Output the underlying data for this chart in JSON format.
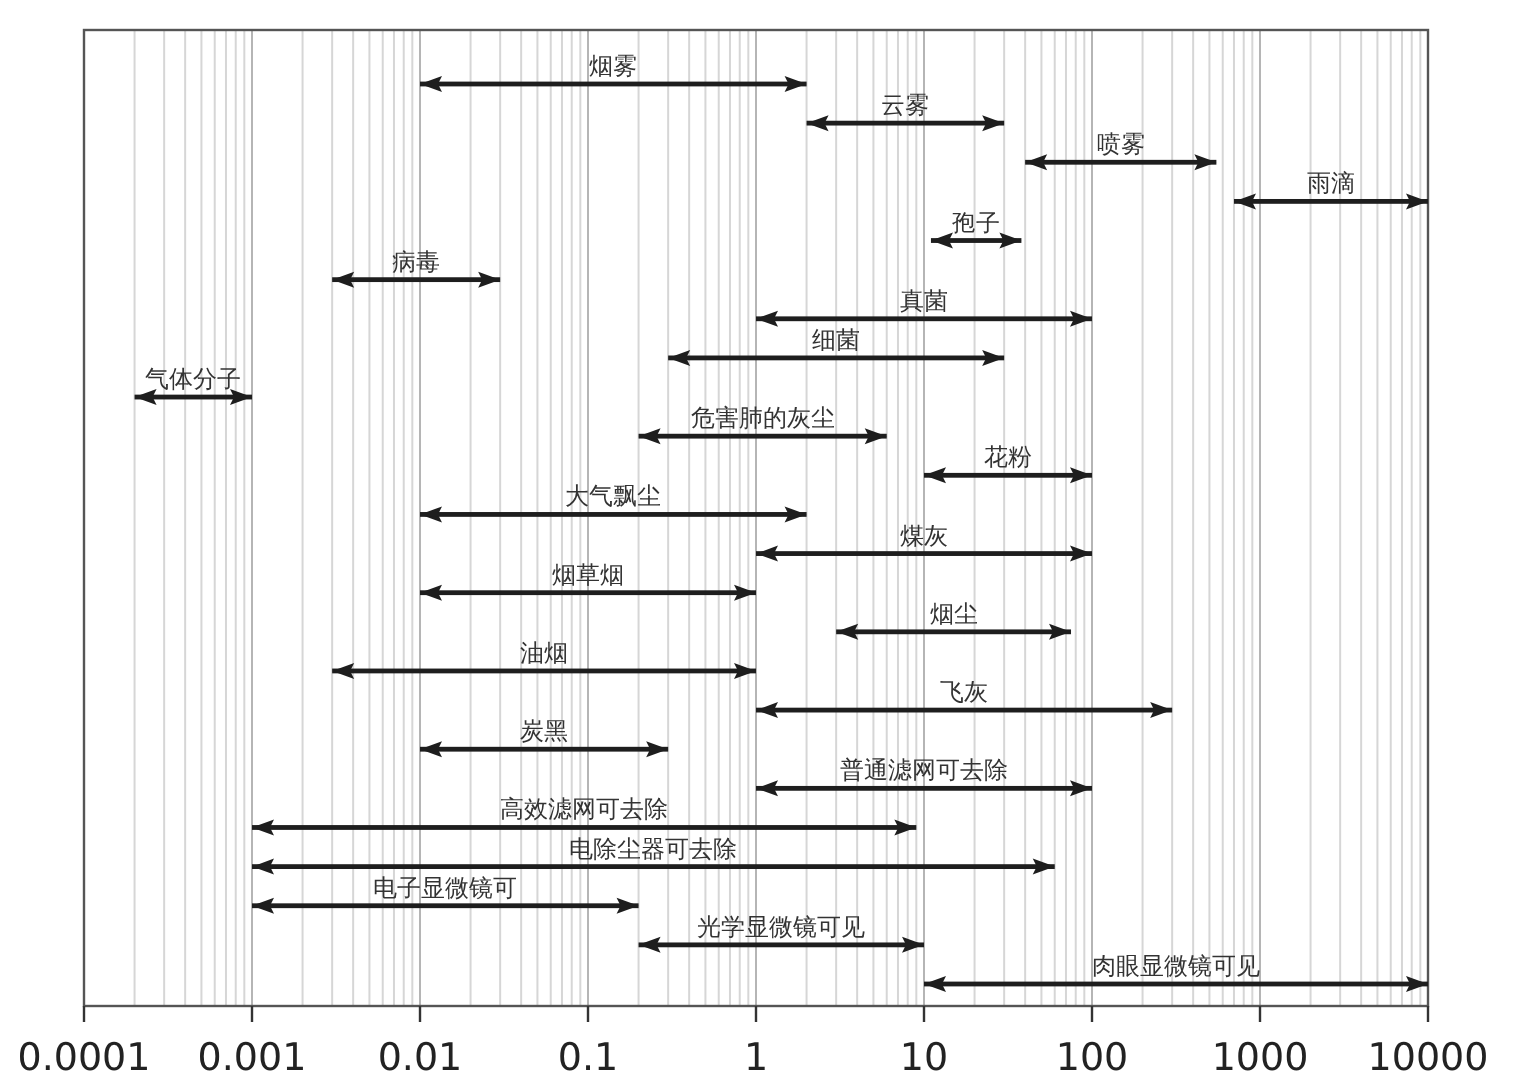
{
  "chart_data": {
    "type": "bar",
    "orientation": "horizontal",
    "log": "x",
    "grid": "x",
    "categories": [
      null,
      null,
      null,
      null,
      null,
      null,
      null,
      null,
      null,
      null,
      null,
      null,
      null,
      null,
      null,
      null,
      null,
      null,
      null,
      null,
      null,
      null,
      null,
      null
    ],
    "xlim": [
      0.0001,
      10000
    ],
    "xticks": [
      0.0001,
      0.001,
      0.01,
      0.1,
      1,
      10,
      100,
      1000,
      10000
    ],
    "series": [
      {
        "color": "#1e1e1e",
        "base": [
          0.01,
          2,
          40,
          700,
          11,
          0.003,
          1,
          0.3,
          0.0002,
          0.2,
          10,
          0.01,
          1,
          0.01,
          3,
          0.003,
          1,
          0.01,
          1,
          0.001,
          0.001,
          0.001,
          0.2,
          10
        ],
        "values": [
          1.99,
          28,
          510,
          9300,
          27,
          0.027,
          99,
          29.7,
          0.0008,
          5.8,
          90,
          1.99,
          99,
          0.99,
          72,
          0.997,
          299,
          0.29,
          99,
          8.999,
          59.999,
          0.199,
          9.8,
          9990
        ],
        "value_labels": [
          "烟雾",
          "云雾",
          "喷雾",
          "雨滴",
          "孢子",
          "病毒",
          "真菌",
          "细菌",
          "气体分子",
          "危害肺的灰尘",
          "花粉",
          "大气飘尘",
          "煤灰",
          "烟草烟",
          "烟尘",
          "油烟",
          "飞灰",
          "炭黑",
          "普通滤网可去除",
          "高效滤网可去除",
          "电除尘器可去除",
          "电子显微镜可",
          "光学显微镜可见",
          "肉眼显微镜可见"
        ]
      }
    ]
  }
}
